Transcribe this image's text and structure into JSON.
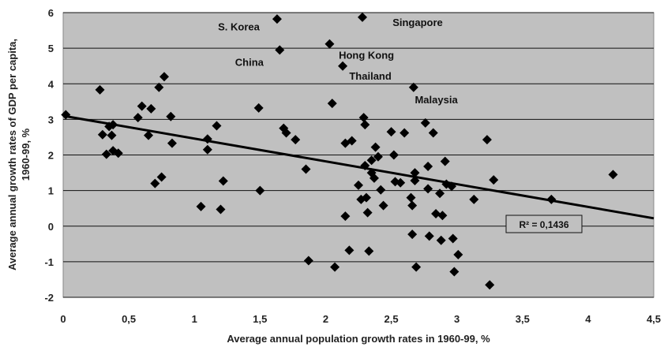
{
  "chart_data": {
    "type": "scatter",
    "xlabel": "Average annual population growth rates in 1960-99, %",
    "ylabel_lines": [
      "Average annual  growth rates of GDP per capita,",
      "1960-99, %"
    ],
    "xlim": [
      0,
      4.5
    ],
    "ylim": [
      -2,
      6
    ],
    "x_ticks": [
      0,
      0.5,
      1,
      1.5,
      2,
      2.5,
      3,
      3.5,
      4,
      4.5
    ],
    "x_tick_labels": [
      "0",
      "0,5",
      "1",
      "1,5",
      "2",
      "2,5",
      "3",
      "3,5",
      "4",
      "4,5"
    ],
    "y_ticks": [
      -2,
      -1,
      0,
      1,
      2,
      3,
      4,
      5,
      6
    ],
    "y_tick_labels": [
      "-2",
      "-1",
      "0",
      "1",
      "2",
      "3",
      "4",
      "5",
      "6"
    ],
    "grid": "horizontal",
    "plot_bg": "#c0c0c0",
    "marker_color": "#000000",
    "trendline": {
      "x": [
        0,
        4.5
      ],
      "y": [
        3.1,
        0.22
      ],
      "r2_label": "R² = 0,1436"
    },
    "annotations": [
      {
        "text": "S. Korea",
        "x": 1.18,
        "y": 5.5
      },
      {
        "text": "Singapore",
        "x": 2.51,
        "y": 5.62
      },
      {
        "text": "China",
        "x": 1.31,
        "y": 4.5
      },
      {
        "text": "Hong Kong",
        "x": 2.1,
        "y": 4.7
      },
      {
        "text": "Thailand",
        "x": 2.18,
        "y": 4.12
      },
      {
        "text": "Malaysia",
        "x": 2.68,
        "y": 3.45
      }
    ],
    "points": [
      [
        0.02,
        3.13
      ],
      [
        0.28,
        3.83
      ],
      [
        0.3,
        2.57
      ],
      [
        0.33,
        2.02
      ],
      [
        0.35,
        2.8
      ],
      [
        0.37,
        2.55
      ],
      [
        0.38,
        2.12
      ],
      [
        0.38,
        2.85
      ],
      [
        0.42,
        2.05
      ],
      [
        0.57,
        3.05
      ],
      [
        0.6,
        3.37
      ],
      [
        0.65,
        2.55
      ],
      [
        0.67,
        3.3
      ],
      [
        0.7,
        1.2
      ],
      [
        0.73,
        3.9
      ],
      [
        0.75,
        1.38
      ],
      [
        0.77,
        4.2
      ],
      [
        0.82,
        3.08
      ],
      [
        0.83,
        2.33
      ],
      [
        1.05,
        0.55
      ],
      [
        1.1,
        2.45
      ],
      [
        1.1,
        2.15
      ],
      [
        1.17,
        2.82
      ],
      [
        1.2,
        0.47
      ],
      [
        1.22,
        1.27
      ],
      [
        1.49,
        3.32
      ],
      [
        1.5,
        1.0
      ],
      [
        1.63,
        5.82
      ],
      [
        1.65,
        4.95
      ],
      [
        1.68,
        2.75
      ],
      [
        1.7,
        2.62
      ],
      [
        1.77,
        2.43
      ],
      [
        1.85,
        1.6
      ],
      [
        1.87,
        -0.97
      ],
      [
        2.03,
        5.12
      ],
      [
        2.05,
        3.45
      ],
      [
        2.07,
        -1.15
      ],
      [
        2.13,
        4.5
      ],
      [
        2.15,
        2.33
      ],
      [
        2.15,
        0.28
      ],
      [
        2.18,
        -0.68
      ],
      [
        2.2,
        2.4
      ],
      [
        2.25,
        1.15
      ],
      [
        2.27,
        0.75
      ],
      [
        2.28,
        5.87
      ],
      [
        2.29,
        3.05
      ],
      [
        2.3,
        2.85
      ],
      [
        2.3,
        1.7
      ],
      [
        2.31,
        0.8
      ],
      [
        2.32,
        0.38
      ],
      [
        2.33,
        -0.7
      ],
      [
        2.35,
        1.5
      ],
      [
        2.35,
        1.85
      ],
      [
        2.37,
        1.35
      ],
      [
        2.38,
        2.22
      ],
      [
        2.4,
        1.95
      ],
      [
        2.42,
        1.02
      ],
      [
        2.44,
        0.58
      ],
      [
        2.5,
        2.65
      ],
      [
        2.52,
        2.0
      ],
      [
        2.53,
        1.25
      ],
      [
        2.57,
        1.22
      ],
      [
        2.6,
        2.62
      ],
      [
        2.65,
        0.8
      ],
      [
        2.66,
        0.58
      ],
      [
        2.66,
        -0.23
      ],
      [
        2.67,
        3.9
      ],
      [
        2.68,
        1.5
      ],
      [
        2.68,
        1.28
      ],
      [
        2.69,
        -1.15
      ],
      [
        2.76,
        2.9
      ],
      [
        2.78,
        1.68
      ],
      [
        2.78,
        1.05
      ],
      [
        2.79,
        -0.28
      ],
      [
        2.82,
        2.62
      ],
      [
        2.84,
        0.35
      ],
      [
        2.87,
        0.92
      ],
      [
        2.88,
        -0.4
      ],
      [
        2.89,
        0.3
      ],
      [
        2.91,
        1.82
      ],
      [
        2.92,
        1.18
      ],
      [
        2.96,
        1.12
      ],
      [
        2.97,
        -0.35
      ],
      [
        2.98,
        -1.28
      ],
      [
        3.01,
        -0.8
      ],
      [
        3.13,
        0.75
      ],
      [
        3.23,
        2.43
      ],
      [
        3.25,
        -1.65
      ],
      [
        3.28,
        1.3
      ],
      [
        3.72,
        0.75
      ],
      [
        4.19,
        1.45
      ]
    ]
  }
}
